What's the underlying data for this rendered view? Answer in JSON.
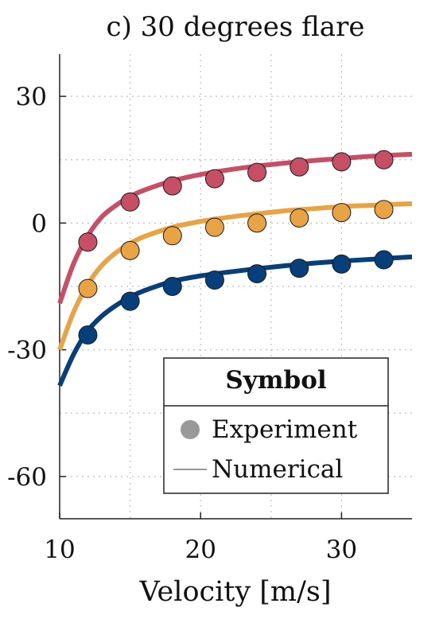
{
  "chart_data": {
    "type": "scatter",
    "title": "c) 30 degrees flare",
    "xlabel": "Velocity [m/s]",
    "ylabel": "",
    "xlim": [
      10,
      35
    ],
    "ylim": [
      -70,
      40
    ],
    "x_ticks": [
      10,
      20,
      30
    ],
    "x_tick_labels": [
      "10",
      "20",
      "30"
    ],
    "y_ticks": [
      30,
      0,
      -30,
      -60
    ],
    "y_tick_labels": [
      "30",
      "0",
      "-30",
      "-60"
    ],
    "grid": true,
    "legend": {
      "title": "Symbol",
      "placement": "bottom-right",
      "entries": [
        {
          "label": "Experiment",
          "marker": "circle",
          "color": "#999999"
        },
        {
          "label": "Numerical",
          "marker": "line",
          "color": "#999999"
        }
      ]
    },
    "series": [
      {
        "color": "#c64f66",
        "experiment": {
          "x": [
            12,
            15,
            18,
            21,
            24,
            27,
            30,
            33
          ],
          "y": [
            -4.5,
            5,
            8.8,
            10.5,
            12,
            13.3,
            14.5,
            15
          ]
        },
        "numerical": {
          "x": [
            10,
            11,
            12,
            13,
            14,
            15,
            16,
            18,
            20,
            22,
            24,
            26,
            28,
            30,
            32,
            35
          ],
          "y": [
            -19,
            -9.5,
            -3,
            1.5,
            4.2,
            6.3,
            7.8,
            10,
            11.5,
            12.6,
            13.5,
            14.2,
            14.8,
            15.3,
            15.8,
            16.3
          ]
        }
      },
      {
        "color": "#e8a444",
        "experiment": {
          "x": [
            12,
            15,
            18,
            21,
            24,
            27,
            30,
            33
          ],
          "y": [
            -15.5,
            -6.5,
            -3,
            -1,
            0,
            1.2,
            2.5,
            3.2
          ]
        },
        "numerical": {
          "x": [
            10,
            11,
            12,
            13,
            14,
            15,
            16,
            18,
            20,
            22,
            24,
            26,
            28,
            30,
            32,
            35
          ],
          "y": [
            -30,
            -21,
            -14.5,
            -10,
            -7,
            -4.8,
            -3.2,
            -1,
            0.4,
            1.4,
            2.2,
            2.9,
            3.4,
            3.9,
            4.2,
            4.6
          ]
        }
      },
      {
        "color": "#063f79",
        "experiment": {
          "x": [
            12,
            15,
            18,
            21,
            24,
            27,
            30,
            33
          ],
          "y": [
            -26.5,
            -18.5,
            -15,
            -13.5,
            -12,
            -10.7,
            -9.7,
            -8.7
          ]
        },
        "numerical": {
          "x": [
            10,
            11,
            12,
            13,
            14,
            15,
            16,
            18,
            20,
            22,
            24,
            26,
            28,
            30,
            32,
            35
          ],
          "y": [
            -38.5,
            -31,
            -25.5,
            -22,
            -19.5,
            -17.5,
            -16,
            -13.8,
            -12.5,
            -11.6,
            -10.8,
            -10.1,
            -9.5,
            -9,
            -8.6,
            -8
          ]
        }
      }
    ]
  }
}
